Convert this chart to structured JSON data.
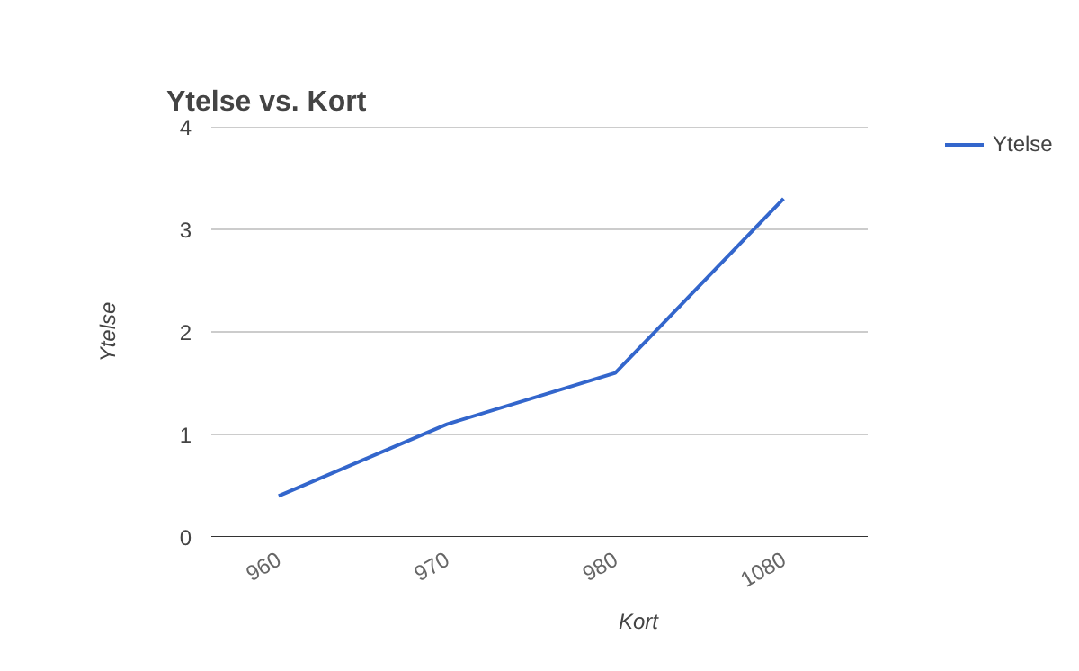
{
  "chart_data": {
    "type": "line",
    "title": "Ytelse vs. Kort",
    "xlabel": "Kort",
    "ylabel": "Ytelse",
    "categories": [
      "960",
      "970",
      "980",
      "1080"
    ],
    "series": [
      {
        "name": "Ytelse",
        "color": "#3366cc",
        "values": [
          0.4,
          1.1,
          1.6,
          3.3
        ]
      }
    ],
    "ylim": [
      0,
      4
    ],
    "yticks": [
      0,
      1,
      2,
      3,
      4
    ],
    "grid": "y",
    "legend": "top right",
    "marker": "none",
    "line_style": "solid"
  }
}
